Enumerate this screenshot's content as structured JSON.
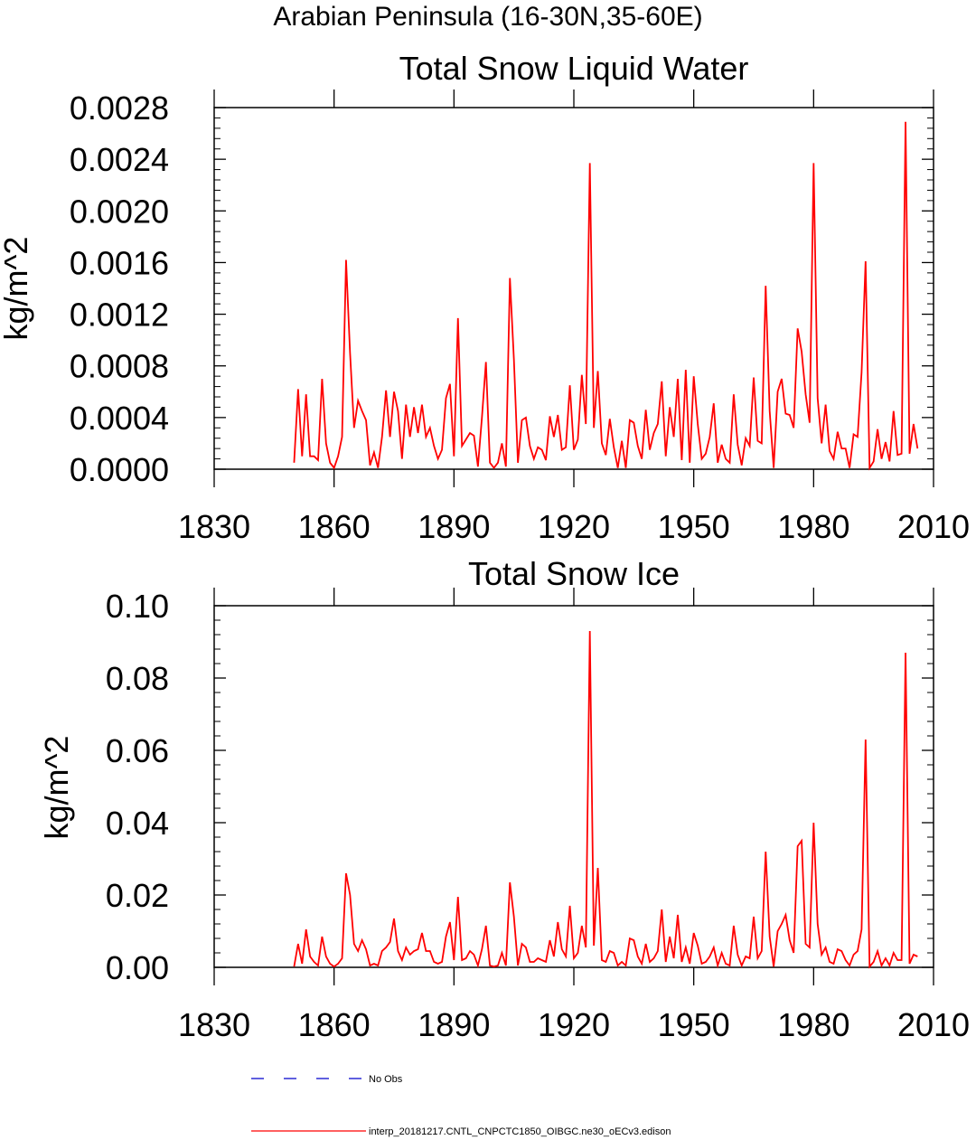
{
  "figure": {
    "main_title": "Arabian Peninsula (16-30N,35-60E)",
    "line_color": "#ff0000",
    "noobs_color": "#0000cc"
  },
  "legend": {
    "entries": [
      {
        "label": "No Obs",
        "style": "dashed",
        "color": "#0000cc"
      },
      {
        "label": "interp_20181217.CNTL_CNPCTC1850_OIBGC.ne30_oECv3.edison",
        "style": "solid",
        "color": "#ff0000"
      }
    ]
  },
  "chart_data": [
    {
      "type": "line",
      "title": "Total Snow Liquid Water",
      "xlabel": "",
      "ylabel": "kg/m^2",
      "xlim": [
        1830,
        2010
      ],
      "ylim": [
        0,
        0.0028
      ],
      "xticks": [
        1830,
        1860,
        1890,
        1920,
        1950,
        1980,
        2010
      ],
      "xtick_labels": [
        "1830",
        "1860",
        "1890",
        "1920",
        "1950",
        "1980",
        "2010"
      ],
      "yticks": [
        0,
        0.0004,
        0.0008,
        0.0012,
        0.0016,
        0.002,
        0.0024,
        0.0028
      ],
      "ytick_labels": [
        "0.0000",
        "0.0004",
        "0.0008",
        "0.0012",
        "0.0016",
        "0.0020",
        "0.0024",
        "0.0028"
      ],
      "series": [
        {
          "name": "interp_20181217.CNTL_CNPCTC1850_OIBGC.ne30_oECv3.edison",
          "x_start": 1850,
          "values": [
            5e-05,
            0.00062,
            0.0001,
            0.00058,
            0.0001,
            0.0001,
            7e-05,
            0.0007,
            0.0002,
            5e-05,
            1e-05,
            0.0001,
            0.00025,
            0.00162,
            0.0009,
            0.00032,
            0.00053,
            0.00045,
            0.00038,
            3e-05,
            0.00013,
            1e-05,
            0.00025,
            0.00061,
            0.00025,
            0.0006,
            0.00045,
            8e-05,
            0.0005,
            0.00025,
            0.00048,
            0.00028,
            0.0005,
            0.00025,
            0.00032,
            0.00018,
            8e-05,
            0.00015,
            0.00055,
            0.00066,
            0.0001,
            0.00117,
            0.00018,
            0.00023,
            0.00028,
            0.00026,
            2e-05,
            0.0004,
            0.00083,
            5e-05,
            1e-05,
            5e-05,
            0.0002,
            2e-05,
            0.00148,
            0.00085,
            5e-05,
            0.00038,
            0.0004,
            0.00018,
            8e-05,
            0.00017,
            0.00015,
            7e-05,
            0.00041,
            0.00025,
            0.00042,
            0.00015,
            0.00017,
            0.00065,
            0.00015,
            0.00023,
            0.00073,
            0.00035,
            0.00237,
            0.00032,
            0.00076,
            0.0002,
            0.00011,
            0.00039,
            0.00017,
            1e-05,
            0.00022,
            1e-05,
            0.00038,
            0.00036,
            0.00018,
            8e-05,
            0.00046,
            0.00015,
            0.00028,
            0.00035,
            0.00068,
            0.0001,
            0.00048,
            0.00025,
            0.0007,
            7e-05,
            0.00077,
            5e-05,
            0.00072,
            0.00035,
            8e-05,
            0.00012,
            0.00025,
            0.00051,
            5e-05,
            0.00019,
            8e-05,
            5e-05,
            0.00058,
            0.00019,
            3e-05,
            0.00024,
            0.00018,
            0.00071,
            0.00022,
            0.0002,
            0.00142,
            0.00045,
            1e-05,
            0.0006,
            0.0007,
            0.00043,
            0.00042,
            0.00032,
            0.00109,
            0.00091,
            0.00058,
            0.00036,
            0.00237,
            0.00055,
            0.0002,
            0.0005,
            0.00014,
            8e-05,
            0.00029,
            0.00016,
            0.00016,
            1e-05,
            0.00027,
            0.00025,
            0.00075,
            0.00161,
            1e-05,
            6e-05,
            0.00031,
            8e-05,
            0.00021,
            6e-05,
            0.00045,
            0.00011,
            0.00012,
            0.00269,
            0.00012,
            0.00035,
            0.00016
          ]
        }
      ]
    },
    {
      "type": "line",
      "title": "Total Snow Ice",
      "xlabel": "",
      "ylabel": "kg/m^2",
      "xlim": [
        1830,
        2010
      ],
      "ylim": [
        0,
        0.1
      ],
      "xticks": [
        1830,
        1860,
        1890,
        1920,
        1950,
        1980,
        2010
      ],
      "xtick_labels": [
        "1830",
        "1860",
        "1890",
        "1920",
        "1950",
        "1980",
        "2010"
      ],
      "yticks": [
        0,
        0.02,
        0.04,
        0.06,
        0.08,
        0.1
      ],
      "ytick_labels": [
        "0.00",
        "0.02",
        "0.04",
        "0.06",
        "0.08",
        "0.10"
      ],
      "series": [
        {
          "name": "interp_20181217.CNTL_CNPCTC1850_OIBGC.ne30_oECv3.edison",
          "x_start": 1850,
          "values": [
            0.0002,
            0.0065,
            0.001,
            0.0105,
            0.003,
            0.0015,
            0.0005,
            0.0085,
            0.003,
            0.001,
            0.0002,
            0.001,
            0.0025,
            0.026,
            0.02,
            0.0065,
            0.0045,
            0.0075,
            0.005,
            0.0005,
            0.001,
            0.0005,
            0.0045,
            0.0055,
            0.007,
            0.0135,
            0.0045,
            0.002,
            0.0055,
            0.0035,
            0.0045,
            0.005,
            0.0095,
            0.0045,
            0.0045,
            0.0015,
            0.001,
            0.0015,
            0.0085,
            0.0125,
            0.002,
            0.0195,
            0.002,
            0.0025,
            0.0045,
            0.0035,
            0.0005,
            0.005,
            0.0115,
            0.0005,
            0.0002,
            0.0005,
            0.004,
            0.0005,
            0.0235,
            0.014,
            0.0005,
            0.0065,
            0.0055,
            0.0015,
            0.0015,
            0.0025,
            0.002,
            0.0015,
            0.0075,
            0.003,
            0.0125,
            0.005,
            0.003,
            0.017,
            0.0025,
            0.004,
            0.0115,
            0.0055,
            0.093,
            0.006,
            0.0275,
            0.002,
            0.0015,
            0.0045,
            0.004,
            0.0005,
            0.0015,
            0.0005,
            0.008,
            0.0075,
            0.003,
            0.001,
            0.0065,
            0.0015,
            0.0025,
            0.0045,
            0.016,
            0.0015,
            0.0085,
            0.0025,
            0.0145,
            0.0015,
            0.0055,
            0.001,
            0.0095,
            0.006,
            0.001,
            0.0015,
            0.003,
            0.0055,
            0.0005,
            0.004,
            0.001,
            0.0005,
            0.0115,
            0.0035,
            0.0005,
            0.003,
            0.0025,
            0.014,
            0.0025,
            0.0045,
            0.032,
            0.0085,
            0.0002,
            0.01,
            0.012,
            0.0145,
            0.0075,
            0.004,
            0.0335,
            0.035,
            0.0065,
            0.0055,
            0.04,
            0.012,
            0.0035,
            0.0055,
            0.0015,
            0.001,
            0.005,
            0.0045,
            0.002,
            0.0005,
            0.0035,
            0.0045,
            0.0105,
            0.063,
            0.0002,
            0.0015,
            0.0045,
            0.0005,
            0.0025,
            0.0005,
            0.004,
            0.002,
            0.002,
            0.087,
            0.001,
            0.0035,
            0.003
          ]
        }
      ]
    }
  ]
}
